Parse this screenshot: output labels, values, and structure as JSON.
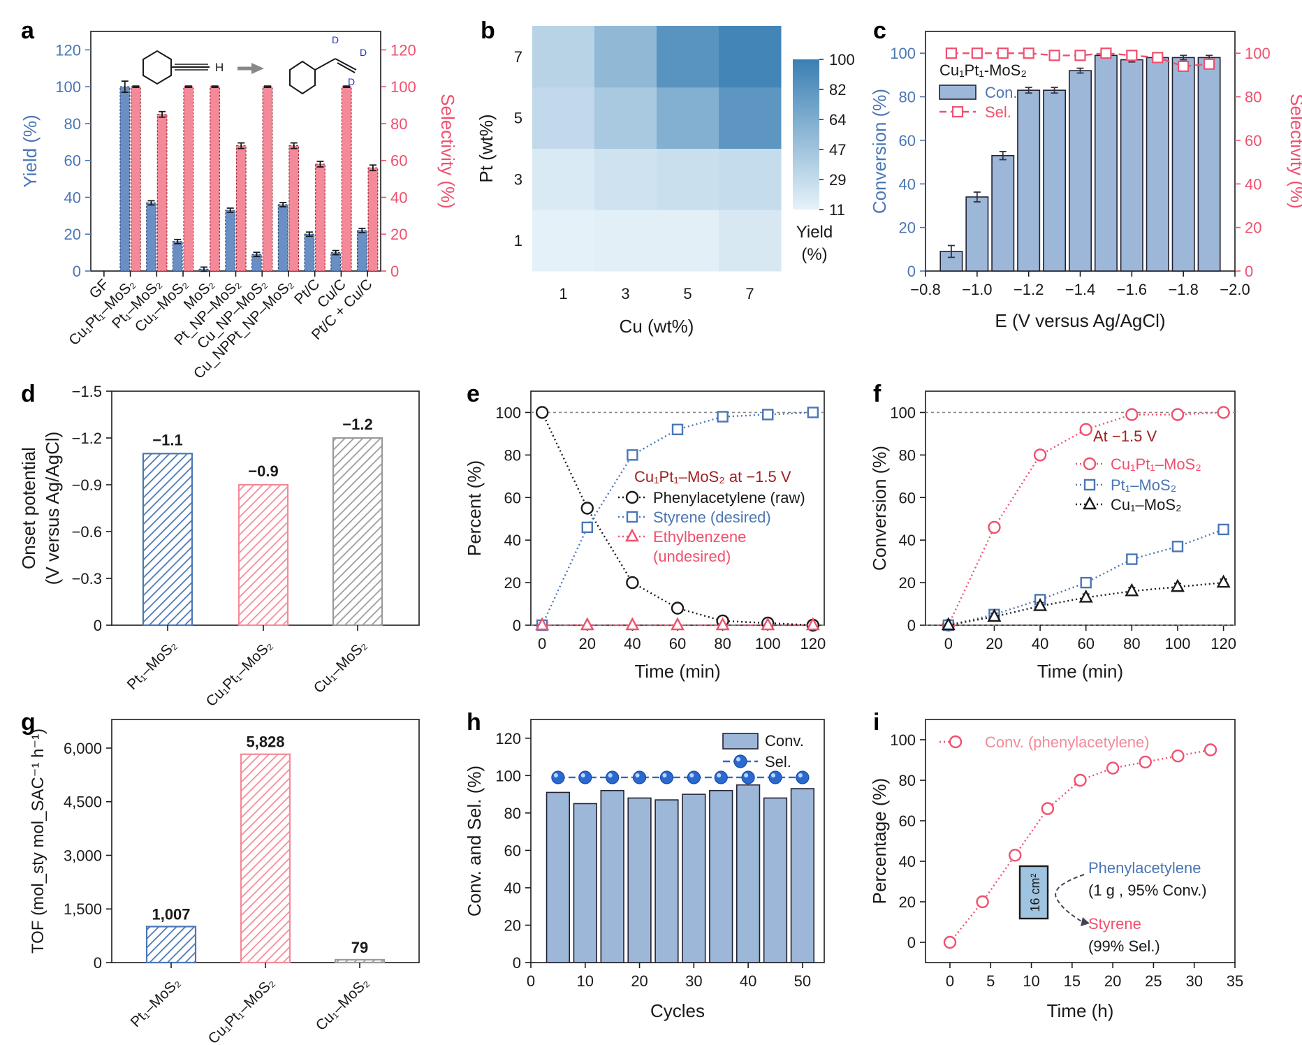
{
  "colors": {
    "blue": "#4a76b4",
    "barblue": "#9db7d8",
    "red": "#f0506e",
    "pink": "#f48a99",
    "dark": "#1a1a1a",
    "gray": "#9a9a9a",
    "darkred": "#a02020",
    "heat": "#3a7fb3"
  },
  "chart_data": [
    {
      "id": "a",
      "type": "bar",
      "panel_label": "a",
      "categories": [
        "GF",
        "Cu₁Pt₁–MoS₂",
        "Pt₁–MoS₂",
        "Cu₁–MoS₂",
        "MoS₂",
        "Pt_NP–MoS₂",
        "Cu_NP–MoS₂",
        "Cu_NPPt_NP–MoS₂",
        "Pt/C",
        "Cu/C",
        "Pt/C + Cu/C"
      ],
      "series": [
        {
          "name": "Yield",
          "values": [
            0,
            100,
            37,
            16,
            1,
            33,
            9,
            36,
            20,
            10,
            22
          ]
        },
        {
          "name": "Selectivity",
          "values": [
            0,
            100,
            85,
            100,
            100,
            68,
            100,
            68,
            58,
            100,
            56
          ]
        }
      ],
      "ylabel": "Yield (%)",
      "y2label": "Selectivity (%)",
      "ylim": [
        0,
        130
      ],
      "yticks": [
        "0",
        "20",
        "40",
        "60",
        "80",
        "100",
        "120"
      ],
      "annotations": [
        "H",
        "D",
        "D",
        "D"
      ]
    },
    {
      "id": "b",
      "type": "heatmap",
      "panel_label": "b",
      "x": [
        1,
        3,
        5,
        7
      ],
      "y": [
        1,
        3,
        5,
        7
      ],
      "xlabel": "Cu (wt%)",
      "ylabel": "Pt (wt%)",
      "values": [
        [
          12,
          13,
          13,
          19
        ],
        [
          17,
          23,
          26,
          28
        ],
        [
          30,
          43,
          62,
          82
        ],
        [
          35,
          55,
          84,
          95
        ]
      ],
      "colorbar": {
        "label_line1": "Yield",
        "label_line2": "(%)",
        "ticks": [
          "100",
          "82",
          "64",
          "47",
          "29",
          "11"
        ]
      }
    },
    {
      "id": "c",
      "type": "bar",
      "panel_label": "c",
      "x": [
        -0.9,
        -1.0,
        -1.1,
        -1.2,
        -1.3,
        -1.4,
        -1.5,
        -1.6,
        -1.7,
        -1.8,
        -1.9
      ],
      "series": [
        {
          "name": "Con.",
          "values": [
            9,
            34,
            53,
            83,
            83,
            92,
            99,
            97,
            98,
            98,
            98
          ]
        },
        {
          "name": "Sel.",
          "values": [
            100,
            100,
            100,
            100,
            99,
            99,
            100,
            99,
            98,
            94,
            95
          ]
        }
      ],
      "xlabel": "E (V versus Ag/AgCl)",
      "ylabel": "Conversion (%)",
      "y2label": "Selectivity (%)",
      "ylim": [
        0,
        110
      ],
      "xticks": [
        "−0.8",
        "−1.0",
        "−1.2",
        "−1.4",
        "−1.6",
        "−1.8",
        "−2.0"
      ],
      "yticks": [
        "0",
        "20",
        "40",
        "60",
        "80",
        "100"
      ],
      "legend_title": "Cu₁Pt₁-MoS₂"
    },
    {
      "id": "d",
      "type": "bar",
      "panel_label": "d",
      "categories": [
        "Pt₁–MoS₂",
        "Cu₁Pt₁–MoS₂",
        "Cu₁–MoS₂"
      ],
      "values": [
        -1.1,
        -0.9,
        -1.2
      ],
      "data_labels": [
        "−1.1",
        "−0.9",
        "−1.2"
      ],
      "ylabel_line1": "Onset potential",
      "ylabel_line2": "(V versus Ag/AgCl)",
      "yticks": [
        "0",
        "−0.3",
        "−0.6",
        "−0.9",
        "−1.2",
        "−1.5"
      ],
      "ylim": [
        0,
        -1.5
      ]
    },
    {
      "id": "e",
      "type": "line",
      "panel_label": "e",
      "x": [
        0,
        20,
        40,
        60,
        80,
        100,
        120
      ],
      "series": [
        {
          "name": "Phenylacetylene (raw)",
          "values": [
            100,
            55,
            20,
            8,
            2,
            1,
            0
          ]
        },
        {
          "name": "Styrene (desired)",
          "values": [
            0,
            46,
            80,
            92,
            98,
            99,
            100
          ]
        },
        {
          "name": "Ethylbenzene",
          "values": [
            0,
            0,
            0,
            0,
            0,
            0,
            0
          ]
        }
      ],
      "legend_extra": "(undesired)",
      "annotation": "Cu₁Pt₁–MoS₂ at −1.5 V",
      "xlabel": "Time (min)",
      "ylabel": "Percent (%)",
      "ylim": [
        0,
        110
      ],
      "xticks": [
        "0",
        "20",
        "40",
        "60",
        "80",
        "100",
        "120"
      ],
      "yticks": [
        "0",
        "20",
        "40",
        "60",
        "80",
        "100"
      ]
    },
    {
      "id": "f",
      "type": "line",
      "panel_label": "f",
      "x": [
        0,
        20,
        40,
        60,
        80,
        100,
        120
      ],
      "series": [
        {
          "name": "Cu₁Pt₁–MoS₂",
          "values": [
            0,
            46,
            80,
            92,
            99,
            99,
            100
          ]
        },
        {
          "name": "Pt₁–MoS₂",
          "values": [
            0,
            5,
            12,
            20,
            31,
            37,
            45
          ]
        },
        {
          "name": "Cu₁–MoS₂",
          "values": [
            0,
            4,
            9,
            13,
            16,
            18,
            20
          ]
        }
      ],
      "annotation": "At −1.5 V",
      "xlabel": "Time (min)",
      "ylabel": "Conversion (%)",
      "ylim": [
        0,
        110
      ],
      "xticks": [
        "0",
        "20",
        "40",
        "60",
        "80",
        "100",
        "120"
      ],
      "yticks": [
        "0",
        "20",
        "40",
        "60",
        "80",
        "100"
      ]
    },
    {
      "id": "g",
      "type": "bar",
      "panel_label": "g",
      "categories": [
        "Pt₁–MoS₂",
        "Cu₁Pt₁–MoS₂",
        "Cu₁–MoS₂"
      ],
      "values": [
        1007,
        5828,
        79
      ],
      "data_labels": [
        "1,007",
        "5,828",
        "79"
      ],
      "ylabel": "TOF (mol_sty mol_SAC⁻¹ h⁻¹)",
      "ylim": [
        0,
        6800
      ],
      "yticks": [
        "0",
        "1,500",
        "3,000",
        "4,500",
        "6,000"
      ]
    },
    {
      "id": "h",
      "type": "bar",
      "panel_label": "h",
      "x": [
        5,
        10,
        15,
        20,
        25,
        30,
        35,
        40,
        45,
        50
      ],
      "series": [
        {
          "name": "Conv.",
          "values": [
            91,
            85,
            92,
            88,
            87,
            90,
            92,
            95,
            88,
            93
          ]
        },
        {
          "name": "Sel.",
          "values": [
            99,
            99,
            99,
            99,
            99,
            99,
            99,
            99,
            99,
            99
          ]
        }
      ],
      "xlabel": "Cycles",
      "ylabel": "Conv. and Sel. (%)",
      "ylim": [
        0,
        130
      ],
      "xticks": [
        "0",
        "10",
        "20",
        "30",
        "40",
        "50"
      ],
      "yticks": [
        "0",
        "20",
        "40",
        "60",
        "80",
        "100",
        "120"
      ]
    },
    {
      "id": "i",
      "type": "line",
      "panel_label": "i",
      "x": [
        0,
        4,
        8,
        12,
        16,
        20,
        24,
        28,
        32
      ],
      "series": [
        {
          "name": "Conv. (phenylacetylene)",
          "values": [
            0,
            20,
            43,
            66,
            80,
            86,
            89,
            92,
            95
          ]
        }
      ],
      "annotations": {
        "reactant": "Phenylacetylene",
        "reactant_detail": "(1 g , 95% Conv.)",
        "product": "Styrene",
        "product_detail": "(99% Sel.)",
        "electrode": "16 cm²"
      },
      "xlabel": "Time (h)",
      "ylabel": "Percentage (%)",
      "ylim": [
        -10,
        110
      ],
      "xticks": [
        "0",
        "5",
        "10",
        "15",
        "20",
        "25",
        "30",
        "35"
      ],
      "yticks": [
        "0",
        "20",
        "40",
        "60",
        "80",
        "100"
      ]
    }
  ]
}
